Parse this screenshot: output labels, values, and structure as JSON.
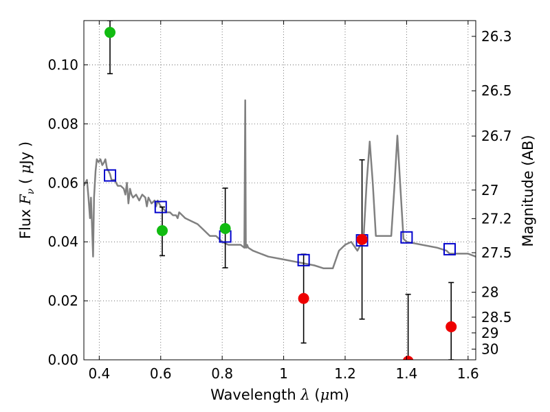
{
  "chart_data": {
    "type": "scatter",
    "title": "",
    "xlabel": {
      "pre": "Wavelength",
      "sym": "λ",
      "post": "(",
      "mu": "μ",
      "unit": "m)"
    },
    "ylabel": {
      "pre": "Flux",
      "sym": "F",
      "sub": "ν",
      "open": "(",
      "mu": "μ",
      "unit": "Jy",
      "close": ")"
    },
    "y2label": "Magnitude (AB)",
    "xlim": [
      0.35,
      1.625
    ],
    "ylim": [
      0.0,
      0.115
    ],
    "grid": true,
    "xticks": [
      {
        "value": 0.4,
        "label": "0.4"
      },
      {
        "value": 0.6,
        "label": "0.6"
      },
      {
        "value": 0.8,
        "label": "0.8"
      },
      {
        "value": 1.0,
        "label": "1"
      },
      {
        "value": 1.2,
        "label": "1.2"
      },
      {
        "value": 1.4,
        "label": "1.4"
      },
      {
        "value": 1.6,
        "label": "1.6"
      }
    ],
    "yticks": [
      {
        "value": 0.0,
        "label": "0.00"
      },
      {
        "value": 0.02,
        "label": "0.02"
      },
      {
        "value": 0.04,
        "label": "0.04"
      },
      {
        "value": 0.06,
        "label": "0.06"
      },
      {
        "value": 0.08,
        "label": "0.08"
      },
      {
        "value": 0.1,
        "label": "0.10"
      }
    ],
    "y2ticks": [
      {
        "mag": 26.3,
        "label": "26.3"
      },
      {
        "mag": 26.5,
        "label": "26.5"
      },
      {
        "mag": 26.7,
        "label": "26.7"
      },
      {
        "mag": 27.0,
        "label": "27"
      },
      {
        "mag": 27.2,
        "label": "27.2"
      },
      {
        "mag": 27.5,
        "label": "27.5"
      },
      {
        "mag": 28.0,
        "label": "28"
      },
      {
        "mag": 28.5,
        "label": "28.5"
      },
      {
        "mag": 29.0,
        "label": "29"
      },
      {
        "mag": 30.0,
        "label": "30"
      }
    ],
    "colors": {
      "model": "#808080",
      "model_points": "#0000cc",
      "detections": "#11bb11",
      "upper_limits": "#ee0000",
      "errorbar": "#000000",
      "grid": "#555555"
    },
    "series": [
      {
        "kind": "model-spectrum",
        "x": [
          0.35,
          0.36,
          0.365,
          0.37,
          0.373,
          0.376,
          0.38,
          0.383,
          0.388,
          0.392,
          0.398,
          0.404,
          0.41,
          0.416,
          0.42,
          0.425,
          0.43,
          0.435,
          0.44,
          0.45,
          0.46,
          0.47,
          0.48,
          0.485,
          0.49,
          0.495,
          0.5,
          0.505,
          0.51,
          0.52,
          0.53,
          0.54,
          0.55,
          0.555,
          0.56,
          0.57,
          0.58,
          0.585,
          0.59,
          0.6,
          0.61,
          0.62,
          0.63,
          0.64,
          0.65,
          0.655,
          0.66,
          0.67,
          0.68,
          0.7,
          0.72,
          0.74,
          0.76,
          0.78,
          0.8,
          0.82,
          0.84,
          0.86,
          0.872,
          0.875,
          0.877,
          0.879,
          0.881,
          0.885,
          0.9,
          0.95,
          1.0,
          1.05,
          1.1,
          1.13,
          1.16,
          1.17,
          1.18,
          1.2,
          1.22,
          1.24,
          1.25,
          1.26,
          1.27,
          1.28,
          1.29,
          1.3,
          1.32,
          1.35,
          1.36,
          1.37,
          1.38,
          1.39,
          1.4,
          1.45,
          1.5,
          1.53,
          1.54,
          1.55,
          1.6,
          1.625
        ],
        "y": [
          0.059,
          0.061,
          0.055,
          0.048,
          0.055,
          0.047,
          0.035,
          0.055,
          0.064,
          0.068,
          0.067,
          0.068,
          0.066,
          0.067,
          0.068,
          0.065,
          0.064,
          0.063,
          0.061,
          0.061,
          0.059,
          0.059,
          0.058,
          0.056,
          0.06,
          0.053,
          0.058,
          0.056,
          0.055,
          0.056,
          0.054,
          0.056,
          0.055,
          0.052,
          0.055,
          0.053,
          0.054,
          0.052,
          0.054,
          0.052,
          0.051,
          0.05,
          0.05,
          0.049,
          0.049,
          0.048,
          0.05,
          0.049,
          0.048,
          0.047,
          0.046,
          0.044,
          0.042,
          0.042,
          0.04,
          0.039,
          0.039,
          0.039,
          0.038,
          0.088,
          0.038,
          0.038,
          0.039,
          0.038,
          0.037,
          0.035,
          0.034,
          0.033,
          0.032,
          0.031,
          0.031,
          0.034,
          0.037,
          0.039,
          0.04,
          0.037,
          0.039,
          0.041,
          0.06,
          0.074,
          0.06,
          0.042,
          0.042,
          0.042,
          0.058,
          0.076,
          0.058,
          0.041,
          0.04,
          0.039,
          0.038,
          0.037,
          0.036,
          0.036,
          0.036,
          0.035
        ]
      },
      {
        "kind": "model-photometry",
        "x": [
          0.435,
          0.6,
          0.81,
          1.065,
          1.255,
          1.4,
          1.54
        ],
        "y": [
          0.0625,
          0.0518,
          0.0418,
          0.0338,
          0.0405,
          0.0415,
          0.0375
        ]
      },
      {
        "kind": "detections",
        "x": [
          0.435,
          0.605,
          0.81
        ],
        "y": [
          0.111,
          0.0438,
          0.0445
        ],
        "err_low": [
          0.097,
          0.0353,
          0.0312
        ],
        "err_high": [
          0.115,
          0.0518,
          0.0582
        ]
      },
      {
        "kind": "upper-limits",
        "x": [
          1.065,
          1.255,
          1.405,
          1.545
        ],
        "y": [
          0.0208,
          0.0408,
          -0.0005,
          0.0112
        ],
        "err_low": [
          0.0057,
          0.0138,
          0.0,
          0.0
        ],
        "err_high": [
          0.0358,
          0.0678,
          0.0222,
          0.0262
        ]
      }
    ]
  }
}
